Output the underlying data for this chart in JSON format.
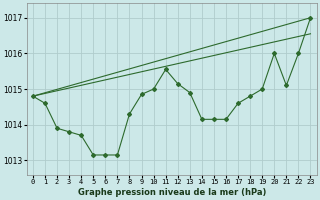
{
  "title": "Graphe pression niveau de la mer (hPa)",
  "bg_color": "#cce8e8",
  "grid_color": "#b0cccc",
  "line_color": "#2d6a2d",
  "xlim": [
    -0.5,
    23.5
  ],
  "ylim": [
    1012.6,
    1017.4
  ],
  "yticks": [
    1013,
    1014,
    1015,
    1016,
    1017
  ],
  "xtick_labels": [
    "0",
    "1",
    "2",
    "3",
    "4",
    "5",
    "6",
    "7",
    "8",
    "9",
    "10",
    "11",
    "12",
    "13",
    "14",
    "15",
    "16",
    "17",
    "18",
    "19",
    "20",
    "21",
    "22",
    "23"
  ],
  "line1_x": [
    0,
    1,
    2,
    3,
    4,
    5,
    6,
    7,
    8,
    9,
    10,
    11,
    12,
    13,
    14,
    15,
    16,
    17,
    18,
    19,
    20,
    21,
    22,
    23
  ],
  "line1_y": [
    1014.8,
    1014.6,
    1013.9,
    1013.8,
    1013.7,
    1013.15,
    1013.15,
    1013.15,
    1014.3,
    1014.85,
    1015.0,
    1015.55,
    1015.15,
    1014.9,
    1014.15,
    1014.15,
    1014.15,
    1014.6,
    1014.8,
    1015.0,
    1016.0,
    1015.1,
    1016.0,
    1017.0
  ],
  "line2_x": [
    0,
    23
  ],
  "line2_y": [
    1014.8,
    1017.0
  ],
  "line3_x": [
    0,
    23
  ],
  "line3_y": [
    1014.8,
    1016.55
  ]
}
